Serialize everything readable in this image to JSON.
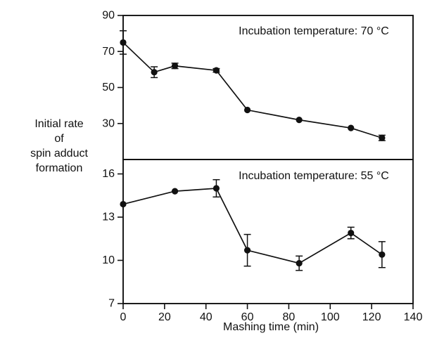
{
  "chart_data": {
    "type": "line",
    "xlabel": "Mashing time (min)",
    "ylabel_lines": [
      "Initial rate",
      "of",
      "spin adduct",
      "formation"
    ],
    "xlim": [
      0,
      140
    ],
    "x_ticks": [
      0,
      20,
      40,
      60,
      80,
      100,
      120,
      140
    ],
    "grid": false,
    "marker": "filled-circle",
    "line_color": "#111111",
    "panels": [
      {
        "annotation": "Incubation temperature: 70 °C",
        "ylim": [
          10,
          90
        ],
        "y_ticks": [
          90,
          70,
          50,
          30
        ],
        "x": [
          0,
          15,
          25,
          45,
          60,
          85,
          110,
          125
        ],
        "y": [
          75,
          58.5,
          62,
          59.5,
          37.5,
          32,
          27.5,
          22
        ],
        "yerr": [
          6.5,
          3,
          1.5,
          1,
          0,
          0,
          0,
          1.5
        ]
      },
      {
        "annotation": "Incubation temperature: 55 °C",
        "ylim": [
          7,
          17
        ],
        "y_ticks": [
          16,
          13,
          10,
          7
        ],
        "x": [
          0,
          25,
          45,
          60,
          85,
          110,
          125
        ],
        "y": [
          13.9,
          14.8,
          15.0,
          10.7,
          9.8,
          11.9,
          10.4
        ],
        "yerr": [
          0,
          0,
          0.6,
          1.1,
          0.5,
          0.4,
          0.9
        ]
      }
    ]
  }
}
